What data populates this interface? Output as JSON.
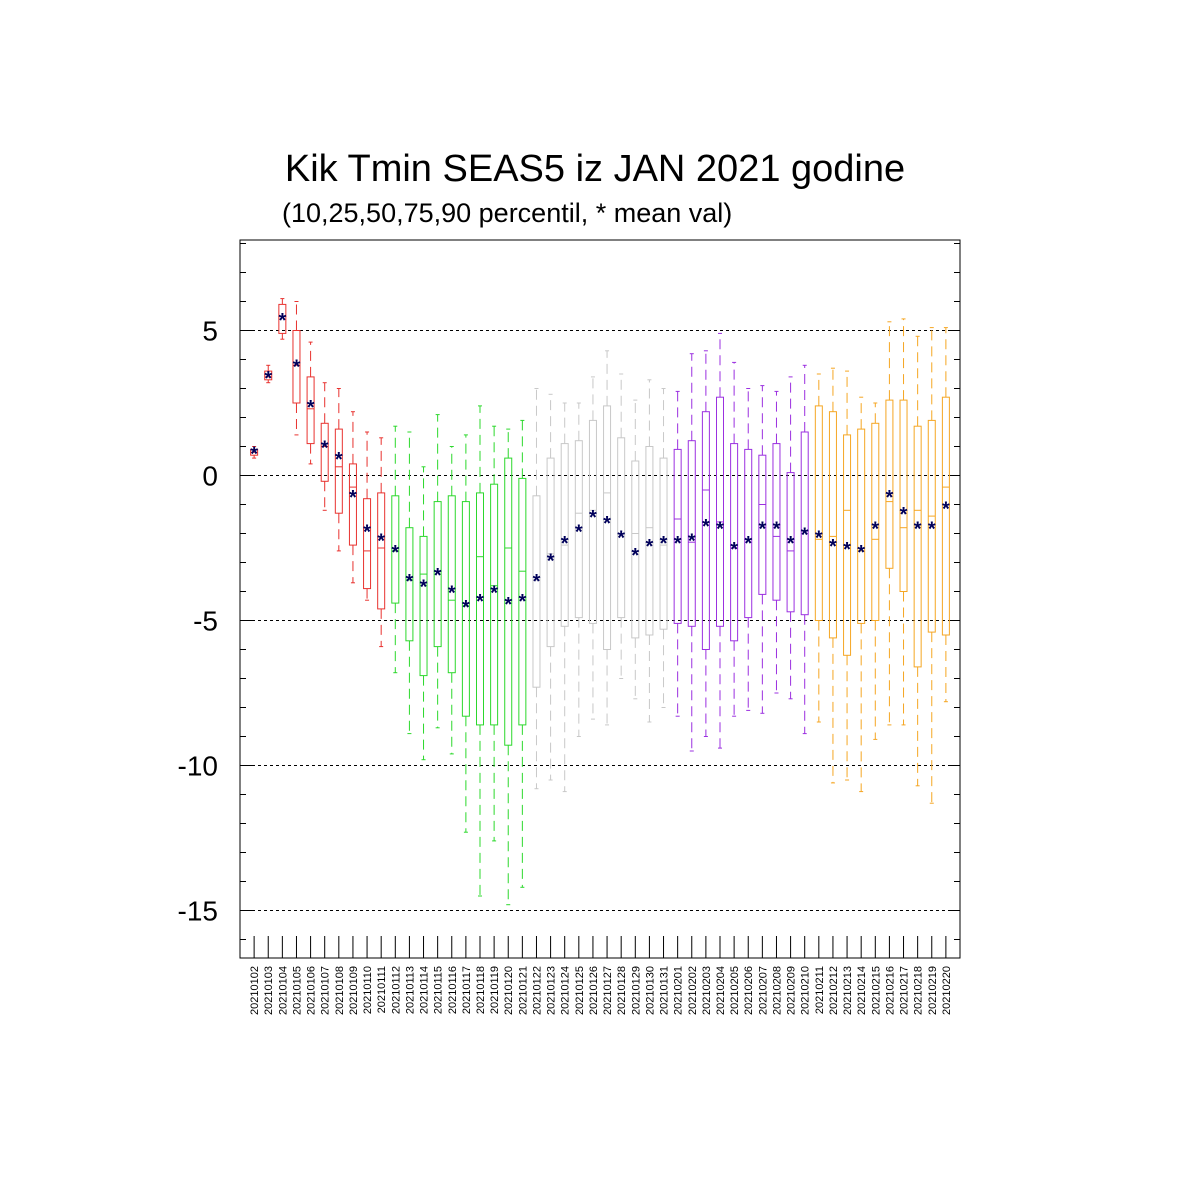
{
  "chart_data": {
    "type": "box",
    "title": "Kik Tmin SEAS5 iz JAN 2021 godine",
    "subtitle": "(10,25,50,75,90 percentil, * mean val)",
    "xlabel": "",
    "ylabel": "",
    "ylim": [
      -16.5,
      8.2
    ],
    "yticks": [
      5,
      0,
      -5,
      -10,
      -15
    ],
    "ytick_labels": [
      "5",
      "0",
      "-5",
      "-10",
      "-15"
    ],
    "gridlines_y": [
      5,
      0,
      -5,
      -10,
      -15
    ],
    "mean_marker": "*",
    "categories": [
      "20210102",
      "20210103",
      "20210104",
      "20210105",
      "20210106",
      "20210107",
      "20210108",
      "20210109",
      "20210110",
      "20210111",
      "20210112",
      "20210113",
      "20210114",
      "20210115",
      "20210116",
      "20210117",
      "20210118",
      "20210119",
      "20210120",
      "20210121",
      "20210122",
      "20210123",
      "20210124",
      "20210125",
      "20210126",
      "20210127",
      "20210128",
      "20210129",
      "20210130",
      "20210131",
      "20210201",
      "20210202",
      "20210203",
      "20210204",
      "20210205",
      "20210206",
      "20210207",
      "20210208",
      "20210209",
      "20210210",
      "20210211",
      "20210212",
      "20210213",
      "20210214",
      "20210215",
      "20210216",
      "20210217",
      "20210218",
      "20210219",
      "20210220"
    ],
    "color_groups": [
      {
        "color": "#e8322f",
        "count": 10
      },
      {
        "color": "#2cd82c",
        "count": 10
      },
      {
        "color": "#c8c8c8",
        "count": 10
      },
      {
        "color": "#9b30e0",
        "count": 10
      },
      {
        "color": "#f5a623",
        "count": 10
      }
    ],
    "mean_color": "#00005a",
    "p10": [
      0.6,
      3.2,
      4.7,
      1.4,
      0.4,
      -1.2,
      -2.6,
      -3.7,
      -4.3,
      -5.9,
      -6.8,
      -8.9,
      -9.8,
      -8.7,
      -9.6,
      -12.3,
      -14.5,
      -12.6,
      -14.8,
      -14.2,
      -10.8,
      -10.5,
      -10.9,
      -9.0,
      -8.4,
      -8.6,
      -7.0,
      -7.7,
      -8.5,
      -8.0,
      -8.3,
      -9.5,
      -9.0,
      -9.4,
      -8.3,
      -8.1,
      -8.2,
      -7.5,
      -7.7,
      -8.9,
      -8.5,
      -10.6,
      -10.5,
      -10.9,
      -9.1,
      -8.6,
      -8.6,
      -10.7,
      -11.3,
      -7.8
    ],
    "p25": [
      0.7,
      3.3,
      4.9,
      2.5,
      1.1,
      -0.2,
      -1.3,
      -2.4,
      -3.9,
      -4.6,
      -4.4,
      -5.7,
      -6.9,
      -5.9,
      -6.8,
      -8.3,
      -8.6,
      -8.6,
      -9.3,
      -8.6,
      -7.3,
      -5.9,
      -5.2,
      -4.9,
      -5.1,
      -6.0,
      -4.9,
      -5.6,
      -5.5,
      -5.3,
      -5.1,
      -5.2,
      -6.0,
      -5.2,
      -5.7,
      -4.9,
      -4.1,
      -4.3,
      -4.7,
      -4.8,
      -5.0,
      -5.6,
      -6.2,
      -5.1,
      -5.0,
      -3.2,
      -4.0,
      -6.6,
      -5.4,
      -5.5
    ],
    "p50": [
      0.8,
      3.4,
      5.5,
      3.8,
      2.3,
      1.0,
      0.3,
      -0.4,
      -2.6,
      -2.5,
      -2.6,
      -3.6,
      -3.4,
      -3.3,
      -4.3,
      -4.5,
      -2.8,
      -3.8,
      -2.5,
      -3.3,
      -3.6,
      -2.7,
      -2.4,
      -1.3,
      -1.2,
      -0.6,
      -2.0,
      -2.0,
      -1.8,
      -2.4,
      -1.5,
      -2.3,
      -0.5,
      -1.6,
      -2.5,
      -2.2,
      -1.0,
      -2.1,
      -2.6,
      -1.9,
      -2.2,
      -2.1,
      -1.2,
      -2.6,
      -2.2,
      -0.9,
      -1.8,
      -1.2,
      -1.4,
      -0.4
    ],
    "p75": [
      0.9,
      3.6,
      5.9,
      5.0,
      3.4,
      1.8,
      1.6,
      0.4,
      -0.8,
      -0.6,
      -0.7,
      -1.8,
      -2.1,
      -0.9,
      -0.7,
      -0.9,
      -0.6,
      -0.3,
      0.6,
      -0.1,
      -0.7,
      0.6,
      1.1,
      1.2,
      1.9,
      2.4,
      1.3,
      0.5,
      1.0,
      0.6,
      0.9,
      1.2,
      2.2,
      2.7,
      1.1,
      0.9,
      0.7,
      1.1,
      0.1,
      1.5,
      2.4,
      2.2,
      1.4,
      1.6,
      1.8,
      2.6,
      2.6,
      1.7,
      1.9,
      2.7
    ],
    "p90": [
      1.0,
      3.8,
      6.1,
      6.0,
      4.6,
      3.2,
      3.0,
      2.2,
      1.5,
      1.3,
      1.7,
      1.5,
      0.3,
      2.1,
      1.0,
      1.4,
      2.4,
      1.7,
      1.6,
      1.9,
      3.0,
      2.8,
      2.5,
      2.5,
      3.4,
      4.3,
      3.5,
      2.6,
      3.3,
      3.0,
      2.9,
      4.2,
      4.3,
      4.9,
      3.9,
      3.0,
      3.1,
      2.9,
      3.4,
      3.8,
      3.5,
      3.7,
      3.6,
      2.7,
      2.5,
      5.3,
      5.4,
      4.8,
      5.1,
      5.1
    ],
    "mean": [
      0.8,
      3.4,
      5.4,
      3.8,
      2.4,
      1.0,
      0.6,
      -0.7,
      -1.9,
      -2.2,
      -2.6,
      -3.6,
      -3.8,
      -3.4,
      -4.0,
      -4.5,
      -4.3,
      -4.0,
      -4.4,
      -4.3,
      -3.6,
      -2.9,
      -2.3,
      -1.9,
      -1.4,
      -1.6,
      -2.1,
      -2.7,
      -2.4,
      -2.3,
      -2.3,
      -2.2,
      -1.7,
      -1.8,
      -2.5,
      -2.3,
      -1.8,
      -1.8,
      -2.3,
      -2.0,
      -2.1,
      -2.4,
      -2.5,
      -2.6,
      -1.8,
      -0.7,
      -1.3,
      -1.8,
      -1.8,
      -1.1
    ]
  }
}
